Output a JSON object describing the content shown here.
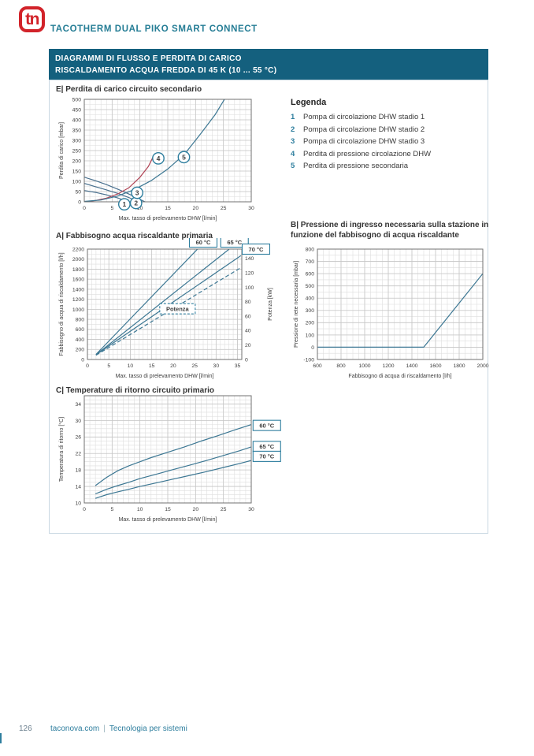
{
  "page": {
    "logo_text": "tn",
    "header_title": "TACOTHERM DUAL PIKO SMART CONNECT",
    "banner_line1": "DIAGRAMMI DI FLUSSO E PERDITA DI CARICO",
    "banner_line2": "RISCALDAMENTO ACQUA FREDDA DI 45 K (10 ... 55 °C)"
  },
  "colors": {
    "accent": "#2e7e9e",
    "banner_bg": "#14607e",
    "logo_red": "#d2232a",
    "header_teal": "#257d95",
    "curve_blue": "#3c7793",
    "pump_blue": "#49708e",
    "curve_red": "#b04556",
    "grid_minor": "#dedede",
    "grid_major": "#c6c6c6",
    "plot_border": "#707070"
  },
  "legend": {
    "title": "Legenda",
    "items": [
      {
        "num": "1",
        "label": "Pompa di circolazione DHW stadio 1"
      },
      {
        "num": "2",
        "label": "Pompa di circolazione DHW stadio 2"
      },
      {
        "num": "3",
        "label": "Pompa di circolazione DHW stadio 3"
      },
      {
        "num": "4",
        "label": "Perdita di pressione circolazione DHW"
      },
      {
        "num": "5",
        "label": "Perdita di pressione secondaria"
      }
    ]
  },
  "footer": {
    "page_number": "126",
    "site": "taconova.com",
    "separator": "|",
    "tagline": "Tecnologia per sistemi"
  },
  "chart_data": [
    {
      "type": "line",
      "title": "E| Perdita di carico circuito secondario",
      "xlabel": "Max. tasso di prelevamento DHW [l/min]",
      "ylabel": "Perdita di carico [mbar]",
      "xlim": [
        0,
        30
      ],
      "ylim": [
        0,
        500
      ],
      "xticks": [
        0,
        5,
        10,
        15,
        20,
        25,
        30
      ],
      "yticks": [
        0,
        50,
        100,
        150,
        200,
        250,
        300,
        350,
        400,
        450,
        500
      ],
      "xminor": 1,
      "yminor": 25,
      "grid": true,
      "legend_position": "right-panel",
      "series": [
        {
          "name": "Pompa di circolazione DHW stadio 1",
          "color": "#49708e",
          "points": [
            [
              0,
              55
            ],
            [
              2,
              46
            ],
            [
              4,
              34
            ],
            [
              6,
              19
            ],
            [
              8,
              0
            ]
          ]
        },
        {
          "name": "Pompa di circolazione DHW stadio 2",
          "color": "#49708e",
          "points": [
            [
              0,
              90
            ],
            [
              2,
              74
            ],
            [
              4,
              58
            ],
            [
              6,
              41
            ],
            [
              8,
              21
            ],
            [
              9.7,
              0
            ]
          ]
        },
        {
          "name": "Pompa di circolazione DHW stadio 3",
          "color": "#49708e",
          "points": [
            [
              0,
              120
            ],
            [
              2,
              103
            ],
            [
              4,
              84
            ],
            [
              6,
              62
            ],
            [
              8,
              38
            ],
            [
              10,
              12
            ],
            [
              10.9,
              0
            ]
          ]
        },
        {
          "name": "Perdita di pressione circolazione DHW",
          "color": "#b04556",
          "points": [
            [
              0,
              0
            ],
            [
              2,
              6
            ],
            [
              4,
              18
            ],
            [
              6,
              38
            ],
            [
              8,
              68
            ],
            [
              10,
              120
            ],
            [
              11.5,
              172
            ],
            [
              12.6,
              232
            ]
          ]
        },
        {
          "name": "Perdita di pressione secondaria",
          "color": "#3c7793",
          "points": [
            [
              0,
              2
            ],
            [
              3,
              9
            ],
            [
              6,
              28
            ],
            [
              9,
              60
            ],
            [
              12,
              103
            ],
            [
              15,
              160
            ],
            [
              18,
              232
            ],
            [
              21,
              335
            ],
            [
              23.5,
              425
            ],
            [
              25.3,
              505
            ]
          ]
        }
      ],
      "annotations": [
        {
          "type": "circle",
          "x": 7.2,
          "y": -12,
          "label": "1"
        },
        {
          "type": "circle",
          "x": 9.3,
          "y": -6,
          "label": "2"
        },
        {
          "type": "circle",
          "x": 9.5,
          "y": 44,
          "label": "3"
        },
        {
          "type": "circle",
          "x": 13.3,
          "y": 212,
          "label": "4"
        },
        {
          "type": "circle",
          "x": 17.9,
          "y": 218,
          "label": "5"
        }
      ]
    },
    {
      "type": "line",
      "title": "A| Fabbisogno acqua riscaldante primaria",
      "xlabel": "Max. tasso di prelevamento DHW [l/min]",
      "ylabel": "Fabbisogno di acqua di riscaldamento [l/h]",
      "xlim": [
        0,
        36
      ],
      "ylim": [
        0,
        2200
      ],
      "xticks": [
        0,
        5,
        10,
        15,
        20,
        25,
        30,
        35
      ],
      "yticks": [
        0,
        200,
        400,
        600,
        800,
        1000,
        1200,
        1400,
        1600,
        1800,
        2000,
        2200
      ],
      "xminor": 1,
      "yminor": 100,
      "grid": true,
      "y2": {
        "label": "Potenza [kW]",
        "ticks": [
          0,
          20,
          40,
          60,
          80,
          100,
          120,
          140
        ],
        "scale": 14.4
      },
      "series": [
        {
          "name": "60 °C",
          "color": "#3c7793",
          "points": [
            [
              2,
              100
            ],
            [
              26,
              2230
            ]
          ]
        },
        {
          "name": "65 °C",
          "color": "#3c7793",
          "points": [
            [
              2,
              95
            ],
            [
              33.5,
              2230
            ]
          ]
        },
        {
          "name": "70 °C",
          "color": "#3c7793",
          "points": [
            [
              2,
              95
            ],
            [
              35.8,
              2070
            ]
          ]
        },
        {
          "name": "Potenza",
          "color": "#3c7793",
          "dash": "5,3",
          "points": [
            [
              2,
              85
            ],
            [
              35.8,
              1830
            ]
          ]
        }
      ],
      "annotations": [
        {
          "type": "box",
          "x": 27,
          "y": 2340,
          "label": "60 °C"
        },
        {
          "type": "box",
          "x": 34.3,
          "y": 2340,
          "label": "65 °C"
        },
        {
          "type": "box",
          "x": 39.3,
          "y": 2200,
          "label": "70 °C"
        },
        {
          "type": "box",
          "x": 21,
          "y": 1010,
          "label": "Potenza",
          "dashed": true
        }
      ]
    },
    {
      "type": "line",
      "title": "B| Pressione di ingresso necessaria sulla stazione in funzione del fabbisogno di acqua riscaldante",
      "xlabel": "Fabbisogno di acqua di riscaldamento [l/h]",
      "ylabel": "Pressione di rete necessaria [mbar]",
      "xlim": [
        600,
        2000
      ],
      "ylim": [
        -100,
        800
      ],
      "xticks": [
        600,
        800,
        1000,
        1200,
        1400,
        1600,
        1800,
        2000
      ],
      "yticks": [
        -100,
        0,
        100,
        200,
        300,
        400,
        500,
        600,
        700,
        800
      ],
      "xminor": 50,
      "yminor": 50,
      "grid": true,
      "series": [
        {
          "name": "Pressione di rete necessaria",
          "color": "#3c7793",
          "points": [
            [
              600,
              0
            ],
            [
              1500,
              0
            ],
            [
              2000,
              600
            ]
          ]
        }
      ],
      "annotations": []
    },
    {
      "type": "line",
      "title": "C| Temperature di ritorno circuito primario",
      "xlabel": "Max. tasso di prelevamento DHW [l/min]",
      "ylabel": "Temperatura di ritorno [°C]",
      "xlim": [
        0,
        30
      ],
      "ylim": [
        10,
        36
      ],
      "xticks": [
        0,
        5,
        10,
        15,
        20,
        25,
        30
      ],
      "yticks": [
        10,
        14,
        18,
        22,
        26,
        30,
        34
      ],
      "xminor": 1,
      "yminor": 1,
      "grid": true,
      "series": [
        {
          "name": "60 °C",
          "color": "#3c7793",
          "points": [
            [
              2,
              14.2
            ],
            [
              4,
              16.2
            ],
            [
              6,
              17.8
            ],
            [
              8,
              19
            ],
            [
              10,
              20
            ],
            [
              12,
              21
            ],
            [
              15,
              22.3
            ],
            [
              18,
              23.6
            ],
            [
              21,
              25
            ],
            [
              24,
              26.3
            ],
            [
              27,
              27.7
            ],
            [
              30,
              29
            ]
          ]
        },
        {
          "name": "65 °C",
          "color": "#3c7793",
          "points": [
            [
              2,
              12.2
            ],
            [
              4,
              13.3
            ],
            [
              6,
              14.2
            ],
            [
              8,
              15
            ],
            [
              10,
              15.9
            ],
            [
              13,
              17
            ],
            [
              16,
              18.1
            ],
            [
              19,
              19.2
            ],
            [
              22,
              20.3
            ],
            [
              25,
              21.5
            ],
            [
              28,
              22.7
            ],
            [
              30,
              23.6
            ]
          ]
        },
        {
          "name": "70 °C",
          "color": "#3c7793",
          "points": [
            [
              2,
              11.1
            ],
            [
              4,
              12
            ],
            [
              6,
              12.7
            ],
            [
              8,
              13.3
            ],
            [
              10,
              14
            ],
            [
              13,
              14.9
            ],
            [
              16,
              15.8
            ],
            [
              19,
              16.7
            ],
            [
              22,
              17.6
            ],
            [
              25,
              18.6
            ],
            [
              28,
              19.6
            ],
            [
              30,
              20.3
            ]
          ]
        }
      ],
      "annotations": [
        {
          "type": "box",
          "x": 32.8,
          "y": 28.8,
          "label": "60 °C"
        },
        {
          "type": "box",
          "x": 32.8,
          "y": 23.7,
          "label": "65 °C"
        },
        {
          "type": "box",
          "x": 32.8,
          "y": 21.3,
          "label": "70 °C"
        }
      ]
    }
  ]
}
